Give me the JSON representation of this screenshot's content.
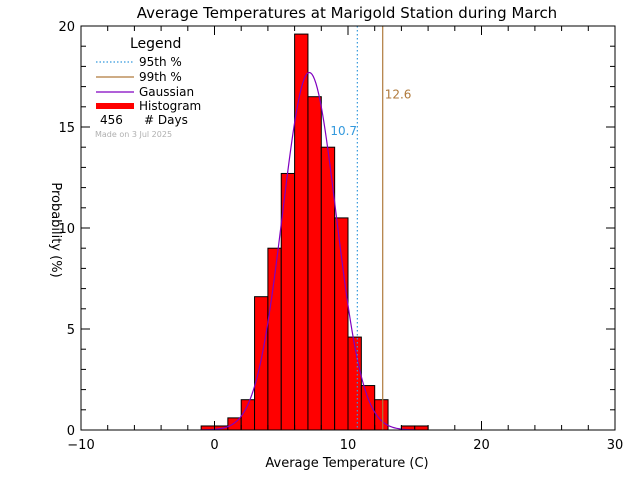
{
  "chart_data": {
    "type": "bar",
    "title": "Average Temperatures at Marigold Station during March",
    "xlabel": "Average Temperature (C)",
    "ylabel": "Probability (%)",
    "xlim": [
      -10,
      30
    ],
    "ylim": [
      0,
      20
    ],
    "x_ticks": [
      -10,
      0,
      10,
      20,
      30
    ],
    "y_ticks": [
      0,
      5,
      10,
      15,
      20
    ],
    "bin_width": 1,
    "histogram": {
      "name": "Histogram",
      "color": "#ff0000",
      "bins": [
        {
          "left": -1,
          "value": 0.2
        },
        {
          "left": 0,
          "value": 0.2
        },
        {
          "left": 1,
          "value": 0.6
        },
        {
          "left": 2,
          "value": 1.5
        },
        {
          "left": 3,
          "value": 6.6
        },
        {
          "left": 4,
          "value": 9.0
        },
        {
          "left": 5,
          "value": 12.7
        },
        {
          "left": 6,
          "value": 19.6
        },
        {
          "left": 7,
          "value": 16.5
        },
        {
          "left": 8,
          "value": 14.0
        },
        {
          "left": 9,
          "value": 10.5
        },
        {
          "left": 10,
          "value": 4.6
        },
        {
          "left": 11,
          "value": 2.2
        },
        {
          "left": 12,
          "value": 1.5
        },
        {
          "left": 14,
          "value": 0.2
        },
        {
          "left": 15,
          "value": 0.2
        }
      ]
    },
    "gaussian": {
      "name": "Gaussian",
      "color": "#8000c0",
      "mean": 7.1,
      "sigma": 2.0,
      "peak": 17.7
    },
    "percentile_95": {
      "name": "95th %",
      "value": 10.7,
      "label": "10.7",
      "color": "#3399dd"
    },
    "percentile_99": {
      "name": "99th %",
      "value": 12.6,
      "label": "12.6",
      "color": "#b07a3c"
    },
    "legend": {
      "title": "Legend",
      "placement": "top-left",
      "entries": [
        "95th %",
        "99th %",
        "Gaussian",
        "Histogram"
      ],
      "days_count": "456",
      "days_label": "# Days"
    },
    "made_on": "Made on 3 Jul 2025"
  }
}
